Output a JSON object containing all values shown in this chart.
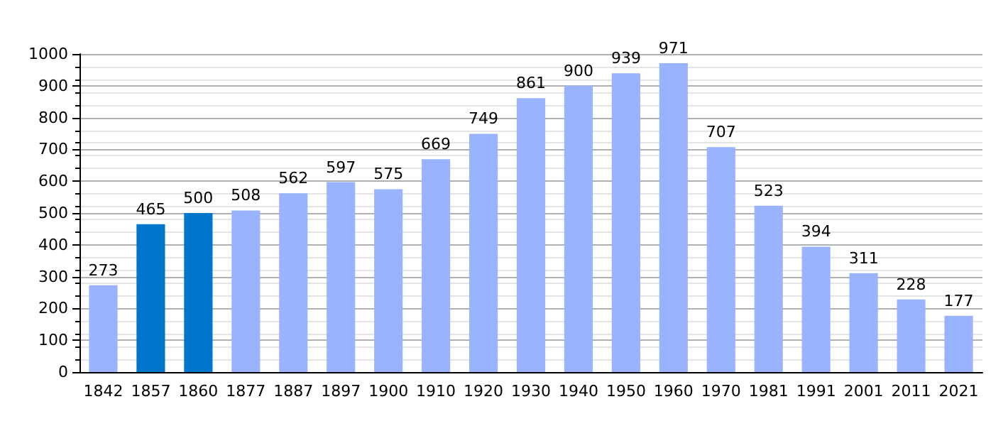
{
  "chart_data": {
    "type": "bar",
    "categories": [
      "1842",
      "1857",
      "1860",
      "1877",
      "1887",
      "1897",
      "1900",
      "1910",
      "1920",
      "1930",
      "1940",
      "1950",
      "1960",
      "1970",
      "1981",
      "1991",
      "2001",
      "2011",
      "2021"
    ],
    "values": [
      273,
      465,
      500,
      508,
      562,
      597,
      575,
      669,
      749,
      861,
      900,
      939,
      971,
      707,
      523,
      394,
      311,
      228,
      177
    ],
    "colors": [
      "#99b3ff",
      "#0077cc",
      "#0077cc",
      "#99b3ff",
      "#99b3ff",
      "#99b3ff",
      "#99b3ff",
      "#99b3ff",
      "#99b3ff",
      "#99b3ff",
      "#99b3ff",
      "#99b3ff",
      "#99b3ff",
      "#99b3ff",
      "#99b3ff",
      "#99b3ff",
      "#99b3ff",
      "#99b3ff",
      "#99b3ff"
    ],
    "ylim": [
      0,
      1000
    ],
    "yticks": [
      0,
      100,
      200,
      300,
      400,
      500,
      600,
      700,
      800,
      900,
      1000
    ],
    "grid": "y",
    "data_labels": true
  }
}
